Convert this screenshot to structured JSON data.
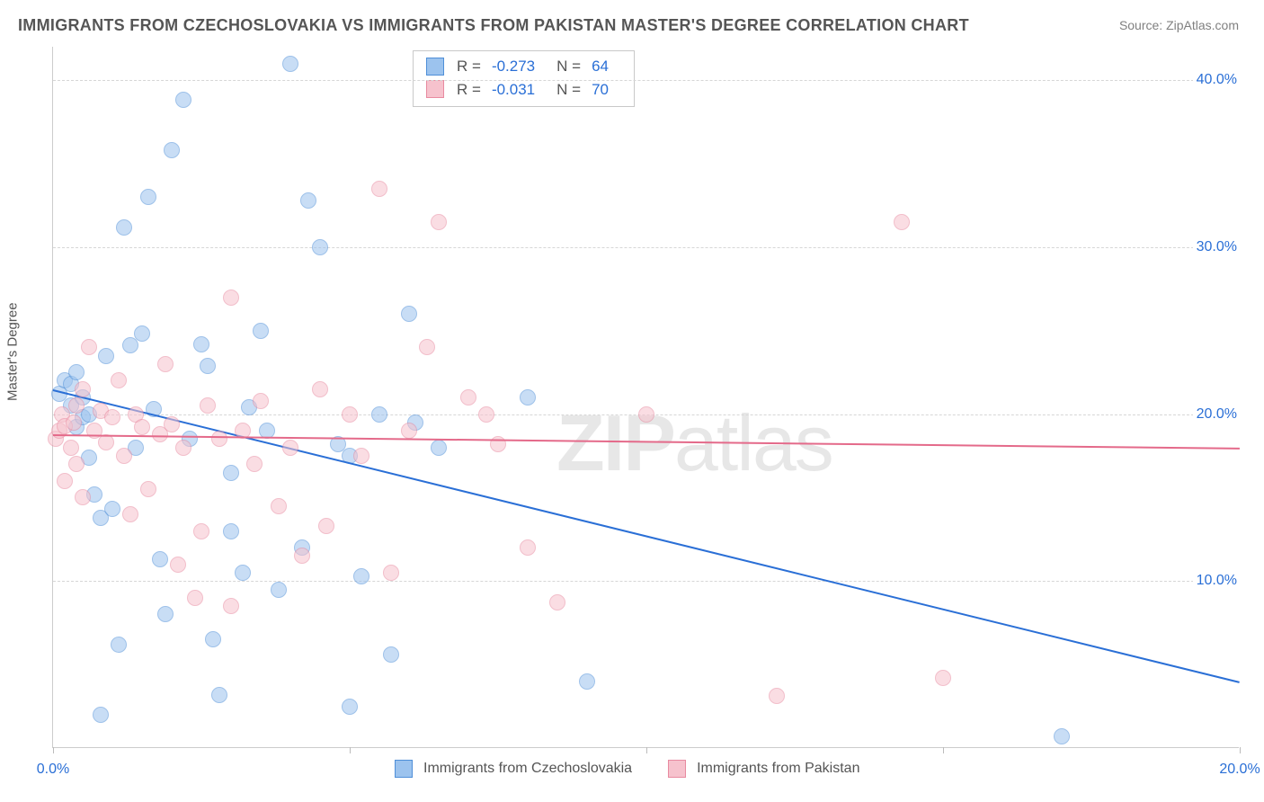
{
  "title": "IMMIGRANTS FROM CZECHOSLOVAKIA VS IMMIGRANTS FROM PAKISTAN MASTER'S DEGREE CORRELATION CHART",
  "source": "Source: ZipAtlas.com",
  "watermark_a": "ZIP",
  "watermark_b": "atlas",
  "ylabel": "Master's Degree",
  "chart": {
    "type": "scatter",
    "xlim": [
      0,
      20
    ],
    "ylim": [
      0,
      42
    ],
    "x_ticks": [
      0,
      5,
      10,
      15,
      20
    ],
    "x_tick_labels": [
      "0.0%",
      "",
      "",
      "",
      "20.0%"
    ],
    "y_gridlines": [
      10,
      20,
      30,
      40
    ],
    "y_tick_labels": [
      "10.0%",
      "20.0%",
      "30.0%",
      "40.0%"
    ],
    "background_color": "#ffffff",
    "grid_color": "#d6d6d6",
    "axis_color": "#cccccc",
    "label_color": "#2a6fd6",
    "title_color": "#555555",
    "marker_radius": 9,
    "marker_opacity": 0.55,
    "trend_width": 2
  },
  "series": [
    {
      "name": "Immigrants from Czechoslovakia",
      "color_fill": "#9cc3ee",
      "color_stroke": "#4f8fd8",
      "trend_color": "#2a6fd6",
      "trend_y0": 21.5,
      "trend_y1": 4.0,
      "R": "-0.273",
      "N": "64",
      "points": [
        [
          0.1,
          21.2
        ],
        [
          0.2,
          22.0
        ],
        [
          0.3,
          20.5
        ],
        [
          0.3,
          21.8
        ],
        [
          0.4,
          19.2
        ],
        [
          0.4,
          22.5
        ],
        [
          0.5,
          19.8
        ],
        [
          0.5,
          21.0
        ],
        [
          0.6,
          20.0
        ],
        [
          0.6,
          17.4
        ],
        [
          0.7,
          15.2
        ],
        [
          0.8,
          13.8
        ],
        [
          0.8,
          2.0
        ],
        [
          0.9,
          23.5
        ],
        [
          1.0,
          14.3
        ],
        [
          1.1,
          6.2
        ],
        [
          1.2,
          31.2
        ],
        [
          1.3,
          24.1
        ],
        [
          1.4,
          18.0
        ],
        [
          1.5,
          24.8
        ],
        [
          1.6,
          33.0
        ],
        [
          1.7,
          20.3
        ],
        [
          1.8,
          11.3
        ],
        [
          1.9,
          8.0
        ],
        [
          2.0,
          35.8
        ],
        [
          2.2,
          38.8
        ],
        [
          2.3,
          18.5
        ],
        [
          2.5,
          24.2
        ],
        [
          2.6,
          22.9
        ],
        [
          2.7,
          6.5
        ],
        [
          2.8,
          3.2
        ],
        [
          3.0,
          13.0
        ],
        [
          3.0,
          16.5
        ],
        [
          3.2,
          10.5
        ],
        [
          3.3,
          20.4
        ],
        [
          3.5,
          25.0
        ],
        [
          3.6,
          19.0
        ],
        [
          3.8,
          9.5
        ],
        [
          4.0,
          41.0
        ],
        [
          4.2,
          12.0
        ],
        [
          4.3,
          32.8
        ],
        [
          4.5,
          30.0
        ],
        [
          4.8,
          18.2
        ],
        [
          5.0,
          17.5
        ],
        [
          5.0,
          2.5
        ],
        [
          5.2,
          10.3
        ],
        [
          5.5,
          20.0
        ],
        [
          5.7,
          5.6
        ],
        [
          6.0,
          26.0
        ],
        [
          6.1,
          19.5
        ],
        [
          6.5,
          18.0
        ],
        [
          8.0,
          21.0
        ],
        [
          9.0,
          4.0
        ],
        [
          17.0,
          0.7
        ]
      ]
    },
    {
      "name": "Immigrants from Pakistan",
      "color_fill": "#f6c2cd",
      "color_stroke": "#e88aa0",
      "trend_color": "#e46a8a",
      "trend_y0": 18.8,
      "trend_y1": 18.0,
      "R": "-0.031",
      "N": "70",
      "points": [
        [
          0.05,
          18.5
        ],
        [
          0.1,
          19.0
        ],
        [
          0.15,
          20.0
        ],
        [
          0.2,
          19.3
        ],
        [
          0.2,
          16.0
        ],
        [
          0.3,
          18.0
        ],
        [
          0.35,
          19.5
        ],
        [
          0.4,
          20.5
        ],
        [
          0.4,
          17.0
        ],
        [
          0.5,
          21.5
        ],
        [
          0.5,
          15.0
        ],
        [
          0.6,
          24.0
        ],
        [
          0.7,
          19.0
        ],
        [
          0.8,
          20.2
        ],
        [
          0.9,
          18.3
        ],
        [
          1.0,
          19.8
        ],
        [
          1.1,
          22.0
        ],
        [
          1.2,
          17.5
        ],
        [
          1.3,
          14.0
        ],
        [
          1.4,
          20.0
        ],
        [
          1.5,
          19.2
        ],
        [
          1.6,
          15.5
        ],
        [
          1.8,
          18.8
        ],
        [
          1.9,
          23.0
        ],
        [
          2.0,
          19.4
        ],
        [
          2.1,
          11.0
        ],
        [
          2.2,
          18.0
        ],
        [
          2.4,
          9.0
        ],
        [
          2.5,
          13.0
        ],
        [
          2.6,
          20.5
        ],
        [
          2.8,
          18.5
        ],
        [
          3.0,
          27.0
        ],
        [
          3.0,
          8.5
        ],
        [
          3.2,
          19.0
        ],
        [
          3.4,
          17.0
        ],
        [
          3.5,
          20.8
        ],
        [
          3.8,
          14.5
        ],
        [
          4.0,
          18.0
        ],
        [
          4.2,
          11.5
        ],
        [
          4.5,
          21.5
        ],
        [
          4.6,
          13.3
        ],
        [
          5.0,
          20.0
        ],
        [
          5.2,
          17.5
        ],
        [
          5.5,
          33.5
        ],
        [
          5.7,
          10.5
        ],
        [
          6.0,
          19.0
        ],
        [
          6.3,
          24.0
        ],
        [
          6.5,
          31.5
        ],
        [
          7.0,
          21.0
        ],
        [
          7.3,
          20.0
        ],
        [
          7.5,
          18.2
        ],
        [
          8.0,
          12.0
        ],
        [
          8.5,
          8.7
        ],
        [
          10.0,
          20.0
        ],
        [
          12.2,
          3.1
        ],
        [
          14.3,
          31.5
        ],
        [
          15.0,
          4.2
        ]
      ]
    }
  ],
  "legend": {
    "series_a": "Immigrants from Czechoslovakia",
    "series_b": "Immigrants from Pakistan",
    "R_label": "R =",
    "N_label": "N ="
  }
}
